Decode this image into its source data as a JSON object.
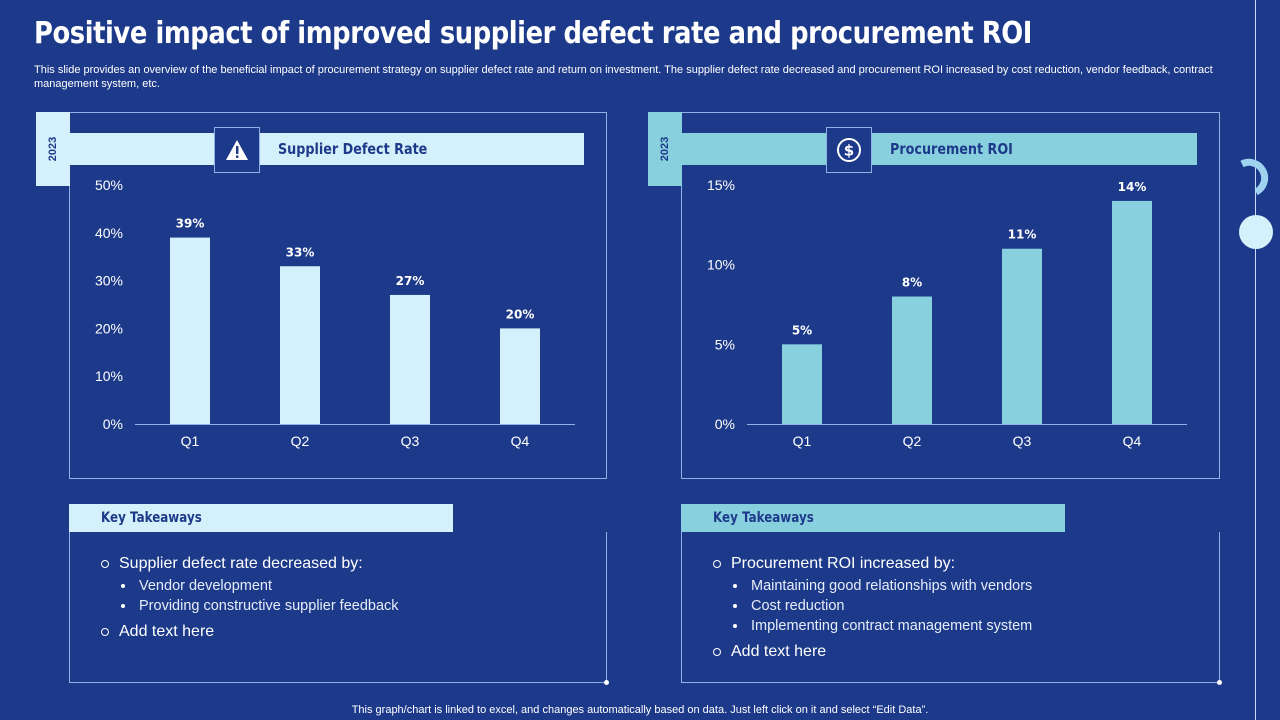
{
  "title": "Positive impact of improved supplier defect rate and procurement ROI",
  "subtitle": "This slide provides an overview of the beneficial impact of procurement strategy on supplier defect rate and return on investment. The supplier defect rate decreased and procurement ROI increased by cost reduction, vendor feedback, contract management system, etc.",
  "footer": "This graph/chart is linked to excel,  and changes automatically based on data. Just left click on it and select “Edit Data”.",
  "colors": {
    "background": "#1d3a8a",
    "left_accent": "#d4f1fb",
    "right_accent": "#89d0df"
  },
  "left_panel": {
    "year": "2023",
    "header": "Supplier Defect Rate",
    "icon": "warning-icon",
    "takeaways_title": "Key Takeaways",
    "takeaways": [
      {
        "text": "Supplier defect rate decreased by:",
        "sub": [
          "Vendor development",
          "Providing constructive supplier feedback"
        ]
      },
      {
        "text": "Add text here",
        "sub": []
      }
    ]
  },
  "right_panel": {
    "year": "2023",
    "header": "Procurement ROI",
    "icon": "dollar-icon",
    "takeaways_title": "Key Takeaways",
    "takeaways": [
      {
        "text": "Procurement ROI increased by:",
        "sub": [
          "Maintaining good relationships with vendors",
          "Cost reduction",
          "Implementing contract management system"
        ]
      },
      {
        "text": "Add text here",
        "sub": []
      }
    ]
  },
  "chart_data": [
    {
      "type": "bar",
      "title": "Supplier Defect Rate",
      "categories": [
        "Q1",
        "Q2",
        "Q3",
        "Q4"
      ],
      "values": [
        39,
        33,
        27,
        20
      ],
      "data_labels": [
        "39%",
        "33%",
        "27%",
        "20%"
      ],
      "ylim": [
        0,
        50
      ],
      "yticks": [
        0,
        10,
        20,
        30,
        40,
        50
      ],
      "ytick_labels": [
        "0%",
        "10%",
        "20%",
        "30%",
        "40%",
        "50%"
      ],
      "grid": false,
      "bar_color": "#d4f1fb"
    },
    {
      "type": "bar",
      "title": "Procurement ROI",
      "categories": [
        "Q1",
        "Q2",
        "Q3",
        "Q4"
      ],
      "values": [
        5,
        8,
        11,
        14
      ],
      "data_labels": [
        "5%",
        "8%",
        "11%",
        "14%"
      ],
      "ylim": [
        0,
        15
      ],
      "yticks": [
        0,
        5,
        10,
        15
      ],
      "ytick_labels": [
        "0%",
        "5%",
        "10%",
        "15%"
      ],
      "grid": false,
      "bar_color": "#89d0df"
    }
  ]
}
